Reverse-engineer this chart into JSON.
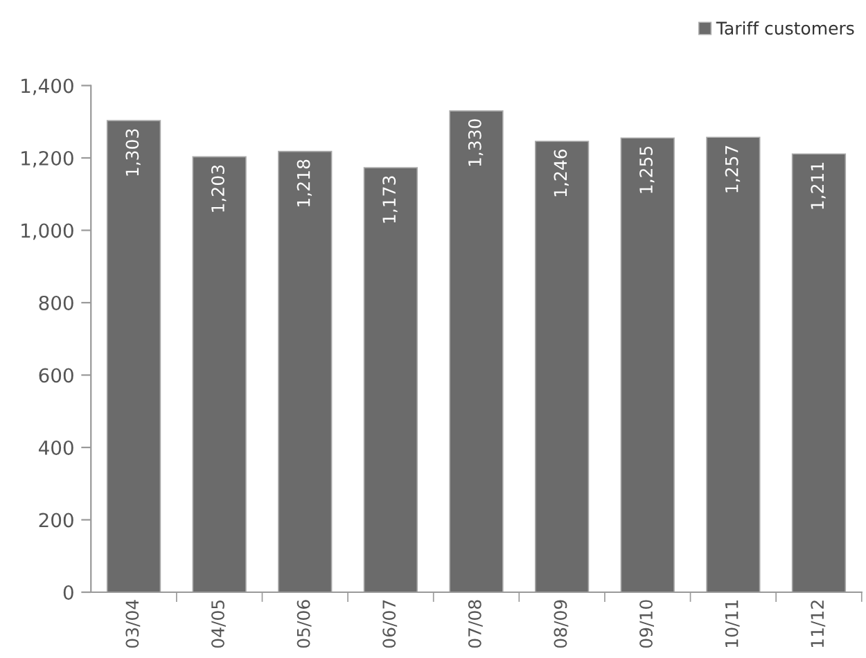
{
  "chart_data": {
    "type": "bar",
    "categories": [
      "03/04",
      "04/05",
      "05/06",
      "06/07",
      "07/08",
      "08/09",
      "09/10",
      "10/11",
      "11/12"
    ],
    "series": [
      {
        "name": "Tariff customers",
        "color": "#6b6b6b",
        "values": [
          1303,
          1203,
          1218,
          1173,
          1330,
          1246,
          1255,
          1257,
          1211
        ]
      }
    ],
    "value_labels": [
      "1,303",
      "1,203",
      "1,218",
      "1,173",
      "1,330",
      "1,246",
      "1,255",
      "1,257",
      "1,211"
    ],
    "ylim": [
      0,
      1400
    ],
    "yticks": [
      {
        "value": 0,
        "label": "0"
      },
      {
        "value": 200,
        "label": "200"
      },
      {
        "value": 400,
        "label": "400"
      },
      {
        "value": 600,
        "label": "600"
      },
      {
        "value": 800,
        "label": "800"
      },
      {
        "value": 1000,
        "label": "1,000"
      },
      {
        "value": 1200,
        "label": "1,200"
      },
      {
        "value": 1400,
        "label": "1,400"
      }
    ],
    "grid": false,
    "legend": "top right"
  }
}
